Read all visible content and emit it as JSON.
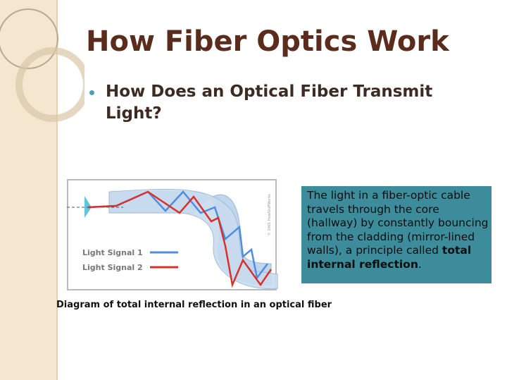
{
  "slide": {
    "title": "How Fiber Optics Work",
    "bullet": "How Does an Optical Fiber Transmit Light?",
    "diagram": {
      "legend": [
        "Light Signal 1",
        "Light Signal 2"
      ],
      "credit": "© 2001 HowStuffWorks"
    },
    "caption": "Diagram of total internal reflection in an optical fiber",
    "textbox": {
      "before": "The light in a fiber-optic cable travels through the core (hallway) by constantly bouncing from the cladding (mirror-lined walls), a principle called ",
      "bold": "total internal reflection",
      "after": "."
    }
  }
}
